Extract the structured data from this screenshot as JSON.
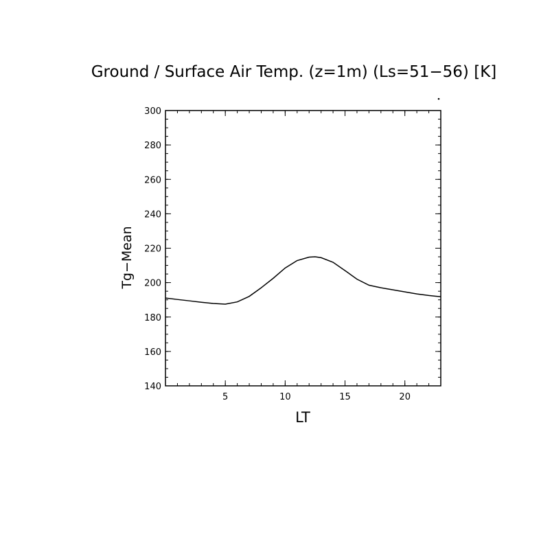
{
  "chart_data": {
    "type": "line",
    "title": "Ground / Surface Air Temp. (z=1m) (Ls=51−56) [K]",
    "xlabel": "LT",
    "ylabel": "Tg−Mean",
    "xlim": [
      0,
      23
    ],
    "ylim": [
      140,
      300
    ],
    "xticks": [
      5,
      10,
      15,
      20
    ],
    "yticks": [
      140,
      160,
      180,
      200,
      220,
      240,
      260,
      280,
      300
    ],
    "grid": false,
    "series": [
      {
        "x": [
          0,
          1,
          2,
          3,
          4,
          5,
          6,
          7,
          8,
          9,
          10,
          11,
          12,
          12.5,
          13,
          14,
          15,
          16,
          17,
          18,
          19,
          20,
          21,
          22,
          23
        ],
        "y": [
          191,
          190.2,
          189.4,
          188.6,
          187.9,
          187.5,
          188.8,
          192,
          197,
          202.5,
          208.5,
          212.8,
          214.8,
          215,
          214.5,
          211.8,
          207,
          202,
          198.5,
          197,
          195.8,
          194.6,
          193.4,
          192.5,
          191.8
        ]
      }
    ]
  }
}
